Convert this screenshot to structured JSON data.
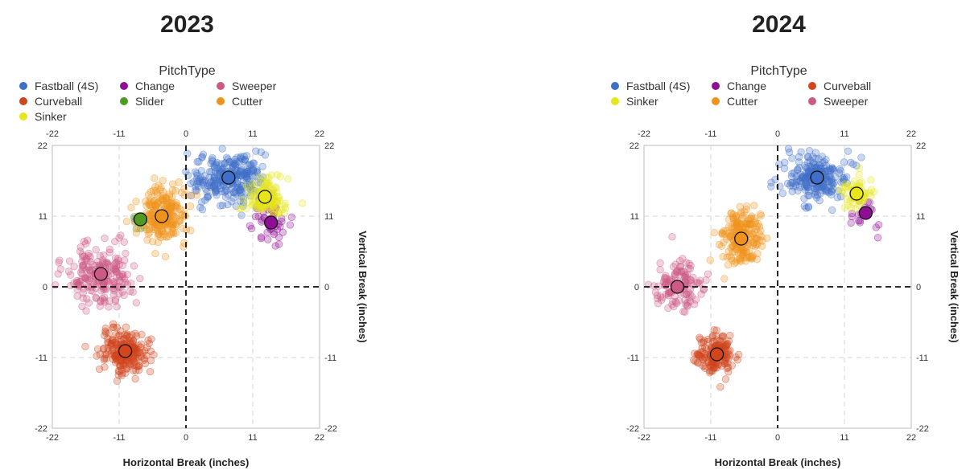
{
  "chart_data": [
    {
      "type": "scatter",
      "title": "2023",
      "legend_title": "PitchType",
      "xlabel": "Horizontal Break (inches)",
      "ylabel": "Vertical Break (inches)",
      "xlim": [
        -22,
        22
      ],
      "ylim": [
        -22,
        22
      ],
      "ticks": [
        "-22",
        "-11",
        "0",
        "11",
        "22"
      ],
      "legend_placement": "top",
      "grid": true,
      "series": [
        {
          "name": "Fastball (4S)",
          "color": "#3f6fc8",
          "mean": [
            7,
            17
          ],
          "spread": [
            5.5,
            3.5
          ],
          "count": 260
        },
        {
          "name": "Change",
          "color": "#8e0f96",
          "mean": [
            14,
            10
          ],
          "spread": [
            3,
            3
          ],
          "count": 45
        },
        {
          "name": "Sweeper",
          "color": "#cc5a85",
          "mean": [
            -14,
            2
          ],
          "spread": [
            5,
            4
          ],
          "count": 210
        },
        {
          "name": "Curveball",
          "color": "#d1461c",
          "mean": [
            -10,
            -10
          ],
          "spread": [
            3.5,
            3
          ],
          "count": 220
        },
        {
          "name": "Slider",
          "color": "#4e9a23",
          "mean": [
            -7.5,
            10.5
          ],
          "spread": [
            1.5,
            1.5
          ],
          "count": 8
        },
        {
          "name": "Cutter",
          "color": "#f0931c",
          "mean": [
            -4,
            11
          ],
          "spread": [
            3.5,
            4
          ],
          "count": 230
        },
        {
          "name": "Sinker",
          "color": "#e6e61a",
          "mean": [
            13,
            14
          ],
          "spread": [
            3,
            2.5
          ],
          "count": 130
        }
      ]
    },
    {
      "type": "scatter",
      "title": "2024",
      "legend_title": "PitchType",
      "xlabel": "Horizontal Break (inches)",
      "ylabel": "Vertical Break (inches)",
      "xlim": [
        -22,
        22
      ],
      "ylim": [
        -22,
        22
      ],
      "ticks": [
        "-22",
        "-11",
        "0",
        "11",
        "22"
      ],
      "legend_placement": "top",
      "grid": true,
      "series": [
        {
          "name": "Fastball (4S)",
          "color": "#3f6fc8",
          "mean": [
            6.5,
            17
          ],
          "spread": [
            4.5,
            3.5
          ],
          "count": 220
        },
        {
          "name": "Change",
          "color": "#8e0f96",
          "mean": [
            14.5,
            11.5
          ],
          "spread": [
            2,
            2.5
          ],
          "count": 18
        },
        {
          "name": "Curveball",
          "color": "#d1461c",
          "mean": [
            -10,
            -10.5
          ],
          "spread": [
            3,
            3
          ],
          "count": 170
        },
        {
          "name": "Sinker",
          "color": "#e6e61a",
          "mean": [
            13,
            14.5
          ],
          "spread": [
            2.5,
            2.5
          ],
          "count": 60
        },
        {
          "name": "Cutter",
          "color": "#f0931c",
          "mean": [
            -6,
            7.5
          ],
          "spread": [
            3,
            4
          ],
          "count": 200
        },
        {
          "name": "Sweeper",
          "color": "#cc5a85",
          "mean": [
            -16.5,
            0
          ],
          "spread": [
            3.5,
            3.5
          ],
          "count": 130
        }
      ]
    }
  ]
}
